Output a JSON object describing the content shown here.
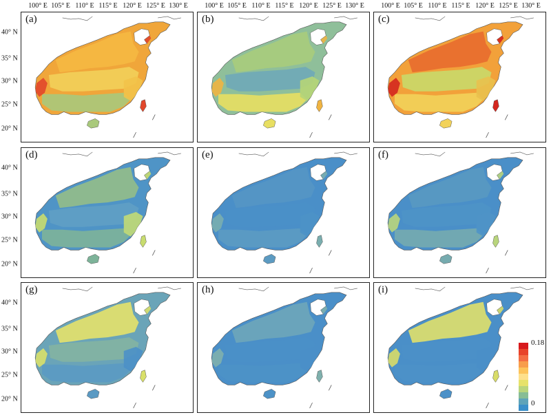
{
  "longitude_labels": [
    "100° E",
    "105° E",
    "110° E",
    "115° E",
    "120° E",
    "125° E",
    "130° E"
  ],
  "latitude_labels": [
    "40° N",
    "35° N",
    "30° N",
    "25° N",
    "20° N"
  ],
  "panels": [
    {
      "label": "(a)",
      "colors": {
        "north": "#f5b942",
        "central": "#f2d05a",
        "south": "#a9c97c",
        "southeast": "#f2c34a",
        "accent": "#e1472b",
        "base": "#f0a63a"
      }
    },
    {
      "label": "(b)",
      "colors": {
        "north": "#a8cc7c",
        "central": "#6fa8b8",
        "south": "#e8df62",
        "southeast": "#b6d577",
        "accent": "#f0b442",
        "base": "#8fbf9a"
      }
    },
    {
      "label": "(c)",
      "colors": {
        "north": "#e86b2f",
        "central": "#c9d96a",
        "south": "#f2d25a",
        "southeast": "#e9c14e",
        "accent": "#d4271f",
        "base": "#f2a13a"
      }
    },
    {
      "label": "(d)",
      "colors": {
        "north": "#93bd88",
        "central": "#5f9ec4",
        "south": "#7db399",
        "southeast": "#c2da74",
        "accent": "#c8dc6e",
        "base": "#4f94c6"
      }
    },
    {
      "label": "(e)",
      "colors": {
        "north": "#5596c4",
        "central": "#4a90c8",
        "south": "#5c9bc2",
        "southeast": "#4d92c7",
        "accent": "#7aaeaf",
        "base": "#4a8fc8"
      }
    },
    {
      "label": "(f)",
      "colors": {
        "north": "#5999c1",
        "central": "#4e93c6",
        "south": "#76abaf",
        "southeast": "#4f93c6",
        "accent": "#b9d57c",
        "base": "#4a8fc8"
      }
    },
    {
      "label": "(g)",
      "colors": {
        "north": "#e6e26a",
        "central": "#84b4a2",
        "south": "#5b9ac3",
        "southeast": "#4b90c8",
        "accent": "#d9e06a",
        "base": "#6aa4b8"
      }
    },
    {
      "label": "(h)",
      "colors": {
        "north": "#6ea6b9",
        "central": "#4a90c8",
        "south": "#4d92c7",
        "southeast": "#4a8fc8",
        "accent": "#7fb0ad",
        "base": "#4a8fc8"
      }
    },
    {
      "label": "(i)",
      "colors": {
        "north": "#e0e06a",
        "central": "#4b90c8",
        "south": "#4c91c8",
        "southeast": "#4a8fc8",
        "accent": "#d8dc68",
        "base": "#4a8fc8"
      }
    }
  ],
  "legend": {
    "max_label": "0.18",
    "min_label": "0",
    "colors": [
      "#d7191c",
      "#e8432a",
      "#f46d43",
      "#f89d4c",
      "#fdc35a",
      "#fee08b",
      "#e6e26a",
      "#b9d57c",
      "#87bd95",
      "#5ea3b9",
      "#3a8fc9"
    ]
  }
}
